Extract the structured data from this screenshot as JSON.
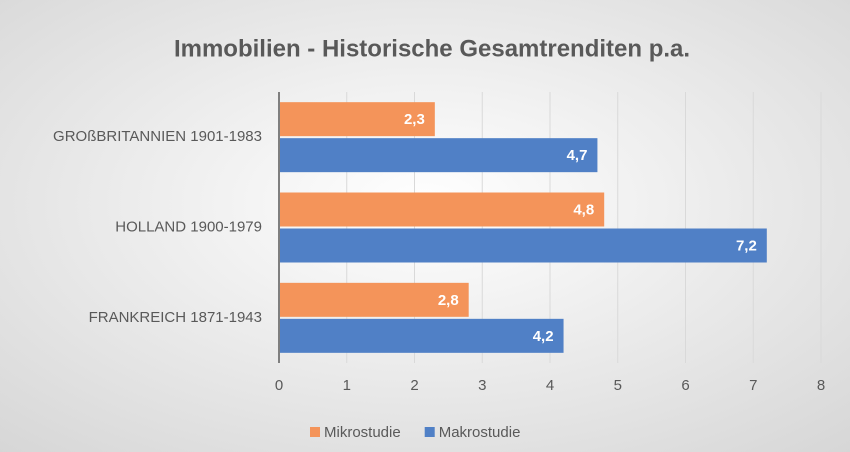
{
  "chart_data": {
    "type": "hbar",
    "title": "Immobilien - Historische Gesamtrenditen p.a.",
    "categories": [
      "GROßBRITANNIEN 1901-1983",
      "HOLLAND 1900-1979",
      "FRANKREICH 1871-1943"
    ],
    "series": [
      {
        "name": "Mikrostudie",
        "color": "#f4945a",
        "values": [
          2.3,
          4.8,
          2.8
        ],
        "value_labels": [
          "2,3",
          "4,8",
          "2,8"
        ]
      },
      {
        "name": "Makrostudie",
        "color": "#5080c6",
        "values": [
          4.7,
          7.2,
          4.2
        ],
        "value_labels": [
          "4,7",
          "7,2",
          "4,2"
        ]
      }
    ],
    "xlim": [
      0,
      8
    ],
    "xticks": [
      0,
      1,
      2,
      3,
      4,
      5,
      6,
      7,
      8
    ],
    "grid": true,
    "legend": "bottom"
  }
}
